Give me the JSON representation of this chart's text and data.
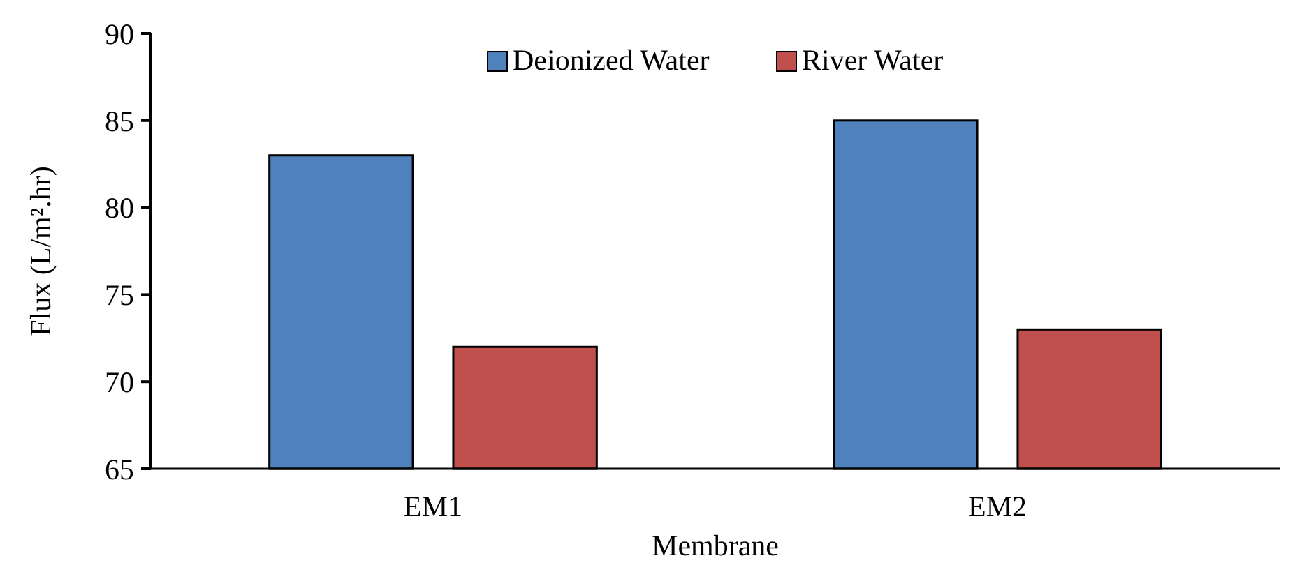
{
  "chart_data": {
    "type": "bar",
    "xlabel": "Membrane",
    "ylabel": "Flux (L/m².hr)",
    "categories": [
      "EM1",
      "EM2"
    ],
    "series": [
      {
        "name": "Deionized Water",
        "color": "#4f81bd",
        "values": [
          83,
          85
        ]
      },
      {
        "name": "River Water",
        "color": "#c0504d",
        "values": [
          72,
          73
        ]
      }
    ],
    "ylim": [
      65,
      90
    ],
    "yticks": [
      65,
      70,
      75,
      80,
      85,
      90
    ],
    "grid": false,
    "legend": "top"
  }
}
